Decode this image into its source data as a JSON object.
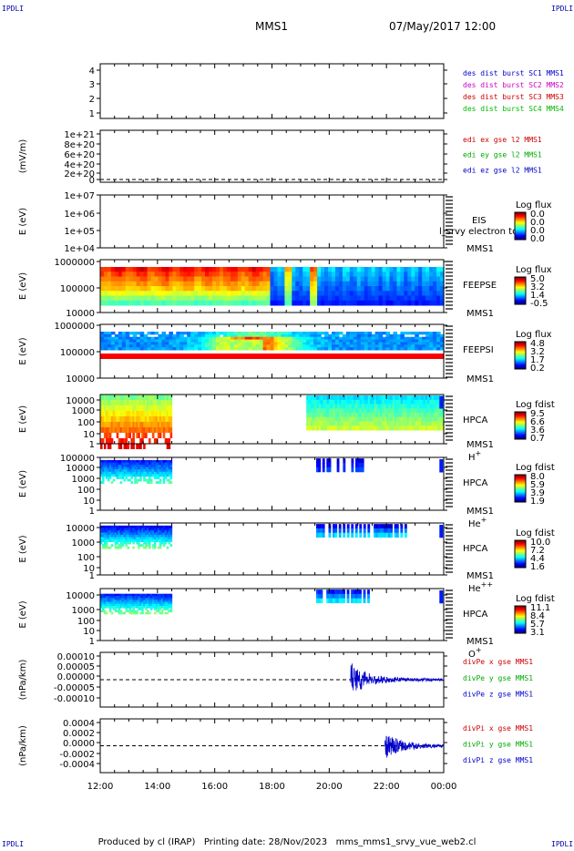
{
  "header": {
    "corner_label": "IPDLI",
    "spacecraft": "MMS1",
    "datetime": "07/May/2017 12:00"
  },
  "footer": {
    "produced_by": "Produced by cl (IRAP)",
    "printing_date": "Printing date: 28/Nov/2023",
    "script_name": "mms_mms1_srvy_vue_web2.cl"
  },
  "x_axis": {
    "tick_labels": [
      "12:00",
      "14:00",
      "16:00",
      "18:00",
      "20:00",
      "22:00",
      "00:00"
    ]
  },
  "chart_data": [
    {
      "type": "line",
      "panel": "burst",
      "tick_labels": [
        "4",
        "3",
        "2",
        "1"
      ],
      "legend": [
        {
          "label": "des dist burst SC1 MMS1",
          "color": "#0000cc"
        },
        {
          "label": "des dist burst SC2 MMS2",
          "color": "#cc00cc"
        },
        {
          "label": "des dist burst SC3 MMS3",
          "color": "#cc0000"
        },
        {
          "label": "des dist burst SC4 MMS4",
          "color": "#00bb00"
        }
      ]
    },
    {
      "type": "line",
      "panel": "edi",
      "ylabel": "(mV/m)",
      "tick_labels": [
        "1e+21",
        "8e+20",
        "6e+20",
        "4e+20",
        "2e+20",
        "0"
      ],
      "legend": [
        {
          "label": "edi ex gse l2 MMS1",
          "color": "#cc0000"
        },
        {
          "label": "edi ey gse l2 MMS1",
          "color": "#00aa00"
        },
        {
          "label": "edi ez gse l2 MMS1",
          "color": "#0000cc"
        }
      ]
    },
    {
      "type": "heatmap",
      "panel": "eis",
      "ylabel": "E (eV)",
      "tick_labels": [
        "1e+07",
        "1e+06",
        "1e+05",
        "1e+04"
      ],
      "instrument": "EIS",
      "spacecraft": "MMS1",
      "overlay_text": "l_srvy electron to",
      "colorbar": {
        "title": "Log flux",
        "values": [
          "0.0",
          "0.0",
          "0.0",
          "0.0"
        ]
      }
    },
    {
      "type": "heatmap",
      "panel": "feeps_e",
      "ylabel": "E (eV)",
      "tick_labels": [
        "1000000",
        "100000",
        "10000"
      ],
      "instrument": "FEEPSE",
      "spacecraft": "MMS1",
      "colorbar": {
        "title": "Log flux",
        "values": [
          "5.0",
          "3.2",
          "1.4",
          "-0.5"
        ]
      }
    },
    {
      "type": "heatmap",
      "panel": "feeps_i",
      "ylabel": "E (eV)",
      "tick_labels": [
        "1000000",
        "100000",
        "10000"
      ],
      "instrument": "FEEPSI",
      "spacecraft": "MMS1",
      "colorbar": {
        "title": "Log flux",
        "values": [
          "4.8",
          "3.2",
          "1.7",
          "0.2"
        ]
      }
    },
    {
      "type": "heatmap",
      "panel": "hpca_h",
      "ylabel": "E (eV)",
      "tick_labels": [
        "10000",
        "1000",
        "100",
        "10",
        "1"
      ],
      "instrument": "HPCA",
      "spacecraft": "MMS1",
      "species": "H",
      "charge": "+",
      "colorbar": {
        "title": "Log fdist",
        "values": [
          "9.5",
          "6.6",
          "3.6",
          "0.7"
        ]
      }
    },
    {
      "type": "heatmap",
      "panel": "hpca_he1",
      "ylabel": "E (eV)",
      "tick_labels": [
        "100000",
        "10000",
        "1000",
        "100",
        "10",
        "1"
      ],
      "instrument": "HPCA",
      "spacecraft": "MMS1",
      "species": "He",
      "charge": "+",
      "colorbar": {
        "title": "Log fdist",
        "values": [
          "8.0",
          "5.9",
          "3.9",
          "1.9"
        ]
      }
    },
    {
      "type": "heatmap",
      "panel": "hpca_he2",
      "ylabel": "E (eV)",
      "tick_labels": [
        "10000",
        "1000",
        "100",
        "10",
        "1"
      ],
      "instrument": "HPCA",
      "spacecraft": "MMS1",
      "species": "He",
      "charge": "++",
      "colorbar": {
        "title": "Log fdist",
        "values": [
          "10.0",
          "7.2",
          "4.4",
          "1.6"
        ]
      }
    },
    {
      "type": "heatmap",
      "panel": "hpca_o",
      "ylabel": "E (eV)",
      "tick_labels": [
        "10000",
        "1000",
        "100",
        "10",
        "1"
      ],
      "instrument": "HPCA",
      "spacecraft": "MMS1",
      "species": "O",
      "charge": "+",
      "colorbar": {
        "title": "Log fdist",
        "values": [
          "11.1",
          "8.4",
          "5.7",
          "3.1"
        ]
      }
    },
    {
      "type": "line",
      "panel": "divpe",
      "ylabel": "(nPa/km)",
      "tick_labels": [
        "0.00010",
        "0.00005",
        "0.00000",
        "-0.00005",
        "-0.00010"
      ],
      "legend": [
        {
          "label": "divPe x gse MMS1",
          "color": "#cc0000"
        },
        {
          "label": "divPe y gse MMS1",
          "color": "#00aa00"
        },
        {
          "label": "divPe z gse MMS1",
          "color": "#0000cc"
        }
      ]
    },
    {
      "type": "line",
      "panel": "divpi",
      "ylabel": "(nPa/km)",
      "tick_labels": [
        "0.0004",
        "0.0002",
        "0.0000",
        "-0.0002",
        "-0.0004"
      ],
      "legend": [
        {
          "label": "divPi x gse MMS1",
          "color": "#cc0000"
        },
        {
          "label": "divPi y gse MMS1",
          "color": "#00aa00"
        },
        {
          "label": "divPi z gse MMS1",
          "color": "#0000cc"
        }
      ]
    }
  ]
}
